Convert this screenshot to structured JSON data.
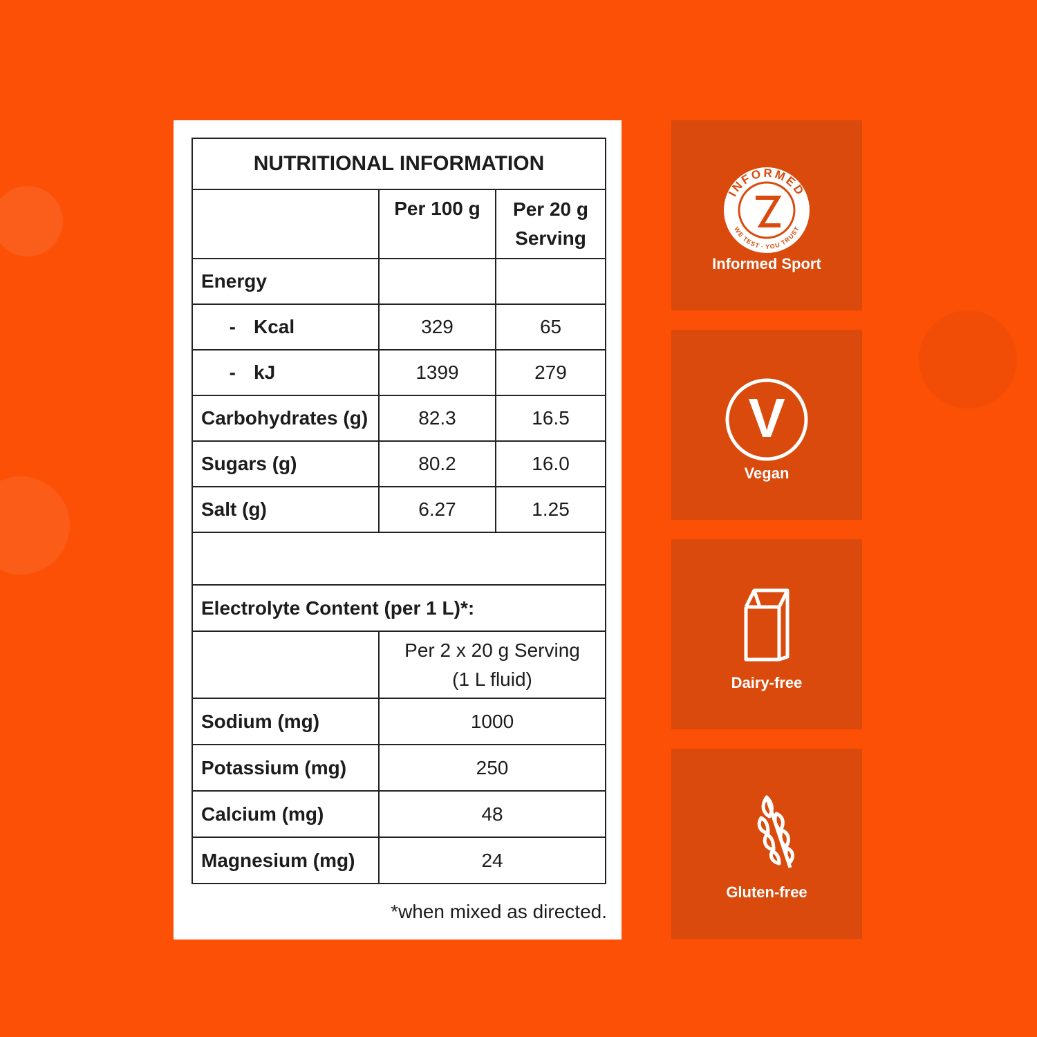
{
  "nutrition": {
    "title": "NUTRITIONAL INFORMATION",
    "columns": [
      "Per 100 g",
      "Per 20 g Serving"
    ],
    "rows": [
      {
        "label": "Energy"
      },
      {
        "prefix": "-",
        "label": "Kcal",
        "per_100g": "329",
        "per_serving": "65"
      },
      {
        "prefix": "-",
        "label": "kJ",
        "per_100g": "1399",
        "per_serving": "279"
      },
      {
        "label": "Carbohydrates (g)",
        "per_100g": "82.3",
        "per_serving": "16.5"
      },
      {
        "label": "Sugars (g)",
        "per_100g": "80.2",
        "per_serving": "16.0"
      },
      {
        "label": "Salt (g)",
        "per_100g": "6.27",
        "per_serving": "1.25"
      }
    ]
  },
  "electrolytes": {
    "heading": "Electrolyte Content (per 1 L)*:",
    "column": [
      "Per 2 x 20 g Serving",
      "(1 L fluid)"
    ],
    "rows": [
      [
        "Sodium (mg)",
        "1000"
      ],
      [
        "Potassium (mg)",
        "250"
      ],
      [
        "Calcium (mg)",
        "48"
      ],
      [
        "Magnesium (mg)",
        "24"
      ]
    ]
  },
  "footnote": "*when mixed as directed.",
  "badges": [
    {
      "label": "Informed Sport",
      "logo_text": "INFORMED",
      "logo_tagline": "WE TEST · YOU TRUST"
    },
    {
      "label": "Vegan",
      "icon_letter": "V"
    },
    {
      "label": "Dairy-free"
    },
    {
      "label": "Gluten-free"
    }
  ]
}
